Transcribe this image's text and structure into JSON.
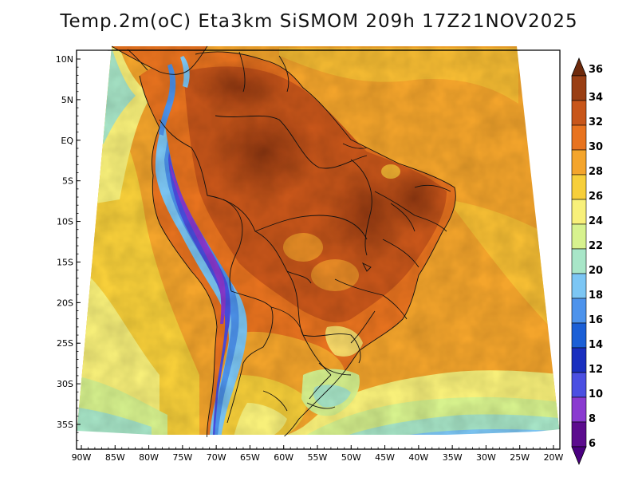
{
  "title": "Temp.2m(oC) Eta3km SiSMOM 209h 17Z21NOV2025",
  "map": {
    "lat_labels": [
      "10N",
      "5N",
      "EQ",
      "5S",
      "10S",
      "15S",
      "20S",
      "25S",
      "30S",
      "35S"
    ],
    "lat_values": [
      10,
      5,
      0,
      -5,
      -10,
      -15,
      -20,
      -25,
      -30,
      -35
    ],
    "lon_labels": [
      "90W",
      "85W",
      "80W",
      "75W",
      "70W",
      "65W",
      "60W",
      "55W",
      "50W",
      "45W",
      "40W",
      "35W",
      "30W",
      "25W",
      "20W"
    ],
    "lon_values": [
      -90,
      -85,
      -80,
      -75,
      -70,
      -65,
      -60,
      -55,
      -50,
      -45,
      -40,
      -35,
      -30,
      -25,
      -20
    ]
  },
  "colorbar": {
    "labels": [
      "36",
      "34",
      "32",
      "30",
      "28",
      "26",
      "24",
      "22",
      "20",
      "18",
      "16",
      "14",
      "12",
      "10",
      "8",
      "6"
    ],
    "colors": [
      "#6e2a0c",
      "#9a3f14",
      "#c8561a",
      "#e8731f",
      "#f4a52c",
      "#f7cf3a",
      "#f8f07a",
      "#d7f28e",
      "#a8e6c8",
      "#7cc6f4",
      "#4d93ec",
      "#1b5fd6",
      "#1a2fbf",
      "#4b4fe2",
      "#8a3ad0",
      "#5c0c8e",
      "#4a0080"
    ]
  },
  "colors": {
    "ocean_warm": "#f4a52c",
    "ocean_mid": "#f7cf3a",
    "ocean_cool": "#f8f07a",
    "ocean_cold": "#d7f28e",
    "cold_water": "#7cc6f4",
    "land_hot": "#c8561a",
    "land_very_hot": "#9a3f14",
    "andes_cold": "#4b4fe2"
  }
}
